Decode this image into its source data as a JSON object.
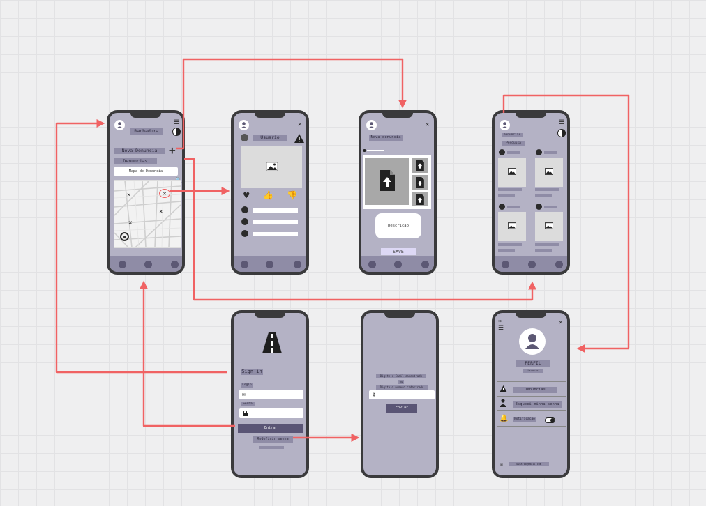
{
  "phone1": {
    "title": "Rachadura",
    "nova_denuncia": "Nova Denuncia",
    "denuncias": "Denuncias",
    "mapa": "Mapa de Denúncia"
  },
  "phone2": {
    "title": "Usuario"
  },
  "phone3": {
    "title": "Nova denuncia",
    "descricao": "Descrição",
    "save": "SAVE"
  },
  "phone4": {
    "tab1": "Denuncias",
    "tab2": "Pesquisa"
  },
  "phone5": {
    "sign_in": "Sign in",
    "login": "Login",
    "senha": "Senha",
    "entrar": "Entrar",
    "redefinir": "Redefinir senha"
  },
  "phone6": {
    "line1": "Digite o Email cadastrado",
    "ou": "ou",
    "line2": "Digite o numero cadastrado",
    "enviar": "Enviar"
  },
  "phone7": {
    "perfil": "PERFIL",
    "sub": "Usuario",
    "denuncias": "Denuncias",
    "esqueci": "Esqueci minha senha",
    "notificacao": "Notificação",
    "email": "usuario@email.com"
  },
  "colors": {
    "arrow": "#f06263",
    "phone_bg": "#b4b2c5",
    "frame": "#3a3a3c",
    "label": "#8f8ca6"
  },
  "icons": [
    "user-icon",
    "menu-icon",
    "contrast-icon",
    "plus-icon",
    "zoom-icon",
    "location-icon",
    "close-icon",
    "warning-icon",
    "image-icon",
    "heart-icon",
    "thumbs-up-icon",
    "thumbs-down-icon",
    "upload-icon",
    "road-icon",
    "mail-icon",
    "lock-icon",
    "key-icon",
    "bell-icon",
    "toggle-icon",
    "logout-icon"
  ]
}
